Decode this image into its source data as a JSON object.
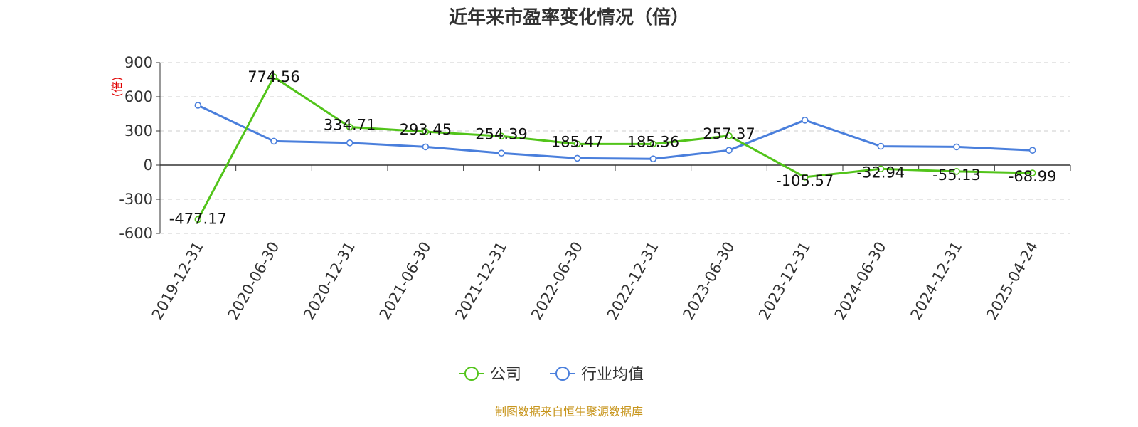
{
  "chart_data": {
    "type": "line",
    "title": "近年来市盈率变化情况（倍）",
    "ylabel": "(倍)",
    "xlabel": "",
    "ylim": [
      -600,
      900
    ],
    "yticks": [
      "900",
      "600",
      "300",
      "0",
      "-300",
      "-600"
    ],
    "ytick_values": [
      900,
      600,
      300,
      0,
      -300,
      -600
    ],
    "categories": [
      "2019-12-31",
      "2020-06-30",
      "2020-12-31",
      "2021-06-30",
      "2021-12-31",
      "2022-06-30",
      "2022-12-31",
      "2023-06-30",
      "2023-12-31",
      "2024-06-30",
      "2024-12-31",
      "2025-04-24"
    ],
    "grid": true,
    "legend_position": "bottom",
    "series": [
      {
        "name": "公司",
        "color": "#52c41a",
        "values": [
          -477.17,
          774.56,
          334.71,
          293.45,
          254.39,
          185.47,
          185.36,
          257.37,
          -105.57,
          -32.94,
          -55.13,
          -68.99
        ],
        "labels": [
          "-477.17",
          "774.56",
          "334.71",
          "293.45",
          "254.39",
          "185.47",
          "185.36",
          "257.37",
          "-105.57",
          "-32.94",
          "-55.13",
          "-68.99"
        ]
      },
      {
        "name": "行业均值",
        "color": "#4a7fdc",
        "values": [
          525,
          210,
          195,
          160,
          105,
          60,
          55,
          130,
          395,
          165,
          160,
          130
        ]
      }
    ],
    "source": "制图数据来自恒生聚源数据库"
  }
}
